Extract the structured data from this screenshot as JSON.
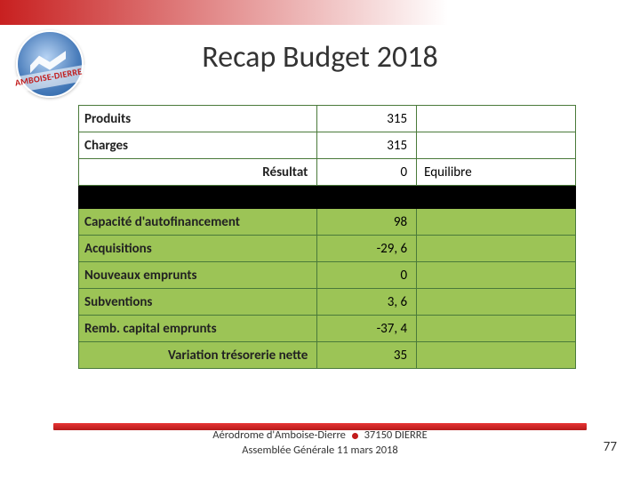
{
  "title": "Recap Budget 2018",
  "logo_banner": "AMBOISE-DIERRE",
  "table": {
    "greenrow_bg": "#9cc456",
    "spacer_bg": "#000000",
    "border_color": "#4a7a3a",
    "rows": [
      {
        "type": "plain",
        "label": "Produits",
        "value": "315",
        "status": ""
      },
      {
        "type": "plain",
        "label": "Charges",
        "value": "315",
        "status": ""
      },
      {
        "type": "right",
        "label": "Résultat",
        "value": "0",
        "status": "Equilibre"
      },
      {
        "type": "spacer"
      },
      {
        "type": "green",
        "label": "Capacité d'autofinancement",
        "value": "98",
        "status": ""
      },
      {
        "type": "green",
        "label": "Acquisitions",
        "value": "-29, 6",
        "status": ""
      },
      {
        "type": "green",
        "label": "Nouveaux emprunts",
        "value": "0",
        "status": ""
      },
      {
        "type": "green",
        "label": "Subventions",
        "value": "3, 6",
        "status": ""
      },
      {
        "type": "green",
        "label": "Remb. capital emprunts",
        "value": "-37, 4",
        "status": ""
      },
      {
        "type": "green-right",
        "label": "Variation trésorerie nette",
        "value": "35",
        "status": ""
      }
    ]
  },
  "footer": {
    "line1_left": "Aérodrome d'Amboise-Dierre",
    "line1_right": "37150 DIERRE",
    "line2": "Assemblée Générale 11 mars 2018"
  },
  "page_number": "77"
}
